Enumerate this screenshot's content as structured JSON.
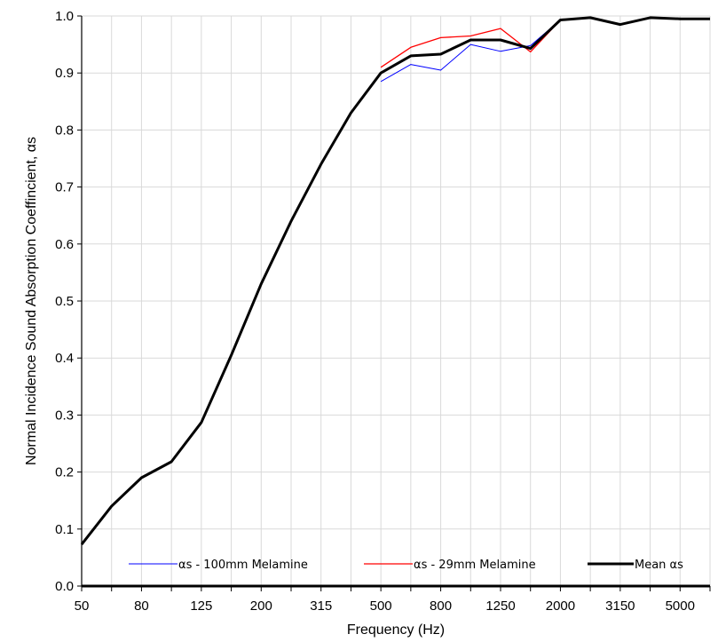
{
  "chart_data": {
    "type": "line",
    "xlabel": "Frequency (Hz)",
    "ylabel": "Normal Incidence Sound Absorption Coeffincient, αs",
    "x": [
      "50",
      "63",
      "80",
      "100",
      "125",
      "160",
      "200",
      "250",
      "315",
      "400",
      "500",
      "630",
      "800",
      "1000",
      "1250",
      "1600",
      "2000",
      "2500",
      "3150",
      "4000",
      "5000",
      "6300"
    ],
    "x_tick_labels": [
      "50",
      "",
      "80",
      "",
      "125",
      "",
      "200",
      "",
      "315",
      "",
      "500",
      "",
      "800",
      "",
      "1250",
      "",
      "2000",
      "",
      "3150",
      "",
      "5000",
      ""
    ],
    "ylim": [
      0,
      1.0
    ],
    "y_ticks": [
      "0.0",
      "0.1",
      "0.2",
      "0.3",
      "0.4",
      "0.5",
      "0.6",
      "0.7",
      "0.8",
      "0.9",
      "1.0"
    ],
    "grid": true,
    "legend_position": "bottom",
    "series": [
      {
        "name": "αs - 100mm Melamine",
        "color": "#0000ff",
        "values": [
          null,
          null,
          null,
          null,
          null,
          null,
          null,
          null,
          null,
          null,
          0.885,
          0.915,
          0.905,
          0.95,
          0.938,
          0.948,
          0.993,
          0.997,
          0.985,
          0.997,
          0.995,
          0.995
        ]
      },
      {
        "name": "αs - 29mm Melamine",
        "color": "#ff0000",
        "values": [
          null,
          null,
          null,
          null,
          null,
          null,
          null,
          null,
          null,
          null,
          0.91,
          0.945,
          0.962,
          0.965,
          0.978,
          0.937,
          0.993,
          0.997,
          0.985,
          0.997,
          0.995,
          0.995
        ]
      },
      {
        "name": "Mean αs",
        "color": "#000000",
        "values": [
          0.073,
          0.14,
          0.19,
          0.218,
          0.287,
          0.405,
          0.53,
          0.64,
          0.74,
          0.83,
          0.9,
          0.93,
          0.933,
          0.958,
          0.958,
          0.943,
          0.993,
          0.997,
          0.985,
          0.997,
          0.995,
          0.995
        ]
      }
    ]
  }
}
